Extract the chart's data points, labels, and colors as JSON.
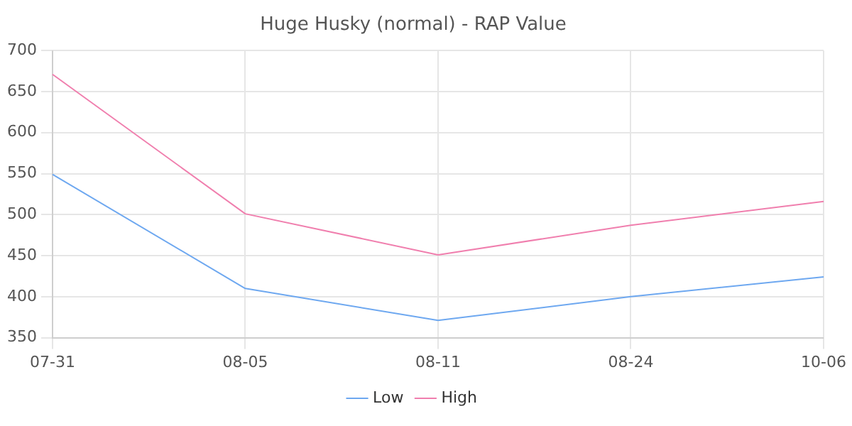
{
  "chart_data": {
    "type": "line",
    "title": "Huge Husky (normal) - RAP Value",
    "categories": [
      "07-31",
      "08-05",
      "08-11",
      "08-24",
      "10-06"
    ],
    "series": [
      {
        "name": "Low",
        "color": "#6ea8f0",
        "values": [
          549,
          410,
          371,
          400,
          424
        ]
      },
      {
        "name": "High",
        "color": "#f07fae",
        "values": [
          671,
          501,
          451,
          487,
          516
        ]
      }
    ],
    "ylim": [
      350,
      700
    ],
    "yticks": [
      350,
      400,
      450,
      500,
      550,
      600,
      650,
      700
    ],
    "grid": true,
    "legend": "bottom",
    "marker": "none",
    "line_style": "solid"
  }
}
